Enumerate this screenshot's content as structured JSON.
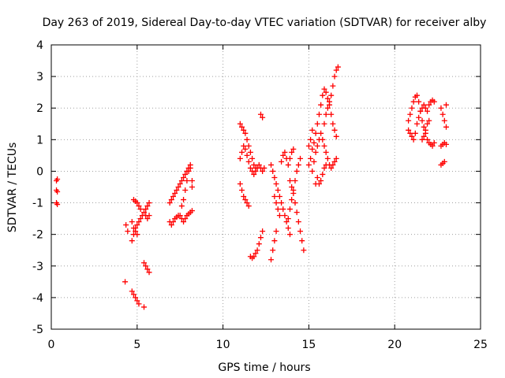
{
  "chart_data": {
    "type": "scatter",
    "title": "Day 263 of 2019, Sidereal Day-to-day VTEC variation (SDTVAR) for receiver alby",
    "xlabel": "GPS time / hours",
    "ylabel": "SDTVAR / TECUs",
    "xlim": [
      0,
      25
    ],
    "ylim": [
      -5,
      4
    ],
    "xticks": [
      "0",
      "5",
      "10",
      "15",
      "20",
      "25"
    ],
    "yticks": [
      "-5",
      "-4",
      "-3",
      "-2",
      "-1",
      "0",
      "1",
      "2",
      "3",
      "4"
    ],
    "grid": true,
    "marker": "plus",
    "color": "#ff0000",
    "series": [
      {
        "points": [
          [
            0.3,
            -0.3
          ],
          [
            0.3,
            -0.6
          ],
          [
            0.3,
            -1.0
          ],
          [
            0.35,
            -0.25
          ],
          [
            0.35,
            -0.65
          ],
          [
            0.35,
            -1.05
          ],
          [
            4.3,
            -3.5
          ],
          [
            4.35,
            -1.7
          ],
          [
            4.45,
            -1.9
          ],
          [
            4.7,
            -3.8
          ],
          [
            4.8,
            -3.9
          ],
          [
            4.9,
            -4.0
          ],
          [
            5.0,
            -4.1
          ],
          [
            5.1,
            -4.2
          ],
          [
            5.4,
            -4.3
          ],
          [
            4.7,
            -2.2
          ],
          [
            4.8,
            -2.0
          ],
          [
            4.9,
            -1.8
          ],
          [
            5.0,
            -1.7
          ],
          [
            5.1,
            -1.6
          ],
          [
            5.2,
            -1.5
          ],
          [
            5.3,
            -1.4
          ],
          [
            5.4,
            -1.3
          ],
          [
            5.5,
            -1.2
          ],
          [
            5.6,
            -1.1
          ],
          [
            5.7,
            -1.0
          ],
          [
            4.7,
            -1.6
          ],
          [
            4.8,
            -1.8
          ],
          [
            4.9,
            -1.9
          ],
          [
            5.0,
            -2.0
          ],
          [
            4.8,
            -0.9
          ],
          [
            4.9,
            -0.95
          ],
          [
            5.0,
            -1.0
          ],
          [
            5.1,
            -1.1
          ],
          [
            5.2,
            -1.2
          ],
          [
            5.5,
            -1.4
          ],
          [
            5.6,
            -1.5
          ],
          [
            5.7,
            -1.4
          ],
          [
            5.4,
            -2.9
          ],
          [
            5.5,
            -3.0
          ],
          [
            5.6,
            -3.1
          ],
          [
            5.7,
            -3.2
          ],
          [
            6.9,
            -1.0
          ],
          [
            7.0,
            -0.9
          ],
          [
            7.1,
            -0.8
          ],
          [
            7.2,
            -0.7
          ],
          [
            7.3,
            -0.6
          ],
          [
            7.4,
            -0.5
          ],
          [
            7.5,
            -0.4
          ],
          [
            7.6,
            -0.3
          ],
          [
            7.7,
            -0.2
          ],
          [
            7.8,
            -0.1
          ],
          [
            7.9,
            0.0
          ],
          [
            8.0,
            0.1
          ],
          [
            8.1,
            0.2
          ],
          [
            6.9,
            -1.6
          ],
          [
            7.0,
            -1.7
          ],
          [
            7.1,
            -1.6
          ],
          [
            7.2,
            -1.5
          ],
          [
            7.3,
            -1.45
          ],
          [
            7.4,
            -1.4
          ],
          [
            7.5,
            -1.4
          ],
          [
            7.6,
            -1.5
          ],
          [
            7.7,
            -1.6
          ],
          [
            7.8,
            -1.5
          ],
          [
            7.9,
            -1.4
          ],
          [
            8.0,
            -1.35
          ],
          [
            8.1,
            -1.3
          ],
          [
            8.2,
            -1.25
          ],
          [
            7.6,
            -1.1
          ],
          [
            7.7,
            -0.9
          ],
          [
            7.8,
            -0.6
          ],
          [
            7.9,
            -0.3
          ],
          [
            8.0,
            0.0
          ],
          [
            8.1,
            0.1
          ],
          [
            8.2,
            -0.3
          ],
          [
            8.2,
            -0.5
          ],
          [
            11.0,
            1.5
          ],
          [
            11.1,
            1.4
          ],
          [
            11.2,
            1.3
          ],
          [
            11.3,
            1.2
          ],
          [
            11.4,
            1.0
          ],
          [
            11.5,
            0.8
          ],
          [
            11.6,
            0.6
          ],
          [
            11.7,
            0.4
          ],
          [
            11.8,
            0.2
          ],
          [
            11.9,
            0.1
          ],
          [
            11.0,
            0.4
          ],
          [
            11.1,
            0.6
          ],
          [
            11.2,
            0.8
          ],
          [
            11.3,
            0.7
          ],
          [
            11.4,
            0.5
          ],
          [
            11.5,
            0.3
          ],
          [
            11.6,
            0.1
          ],
          [
            11.7,
            0.0
          ],
          [
            11.8,
            -0.1
          ],
          [
            11.9,
            0.0
          ],
          [
            12.0,
            0.1
          ],
          [
            12.1,
            0.2
          ],
          [
            12.2,
            0.1
          ],
          [
            12.3,
            0.0
          ],
          [
            12.4,
            0.1
          ],
          [
            11.0,
            -0.4
          ],
          [
            11.1,
            -0.6
          ],
          [
            11.2,
            -0.8
          ],
          [
            11.3,
            -0.9
          ],
          [
            11.4,
            -1.0
          ],
          [
            11.5,
            -1.1
          ],
          [
            12.2,
            1.8
          ],
          [
            12.3,
            1.7
          ],
          [
            11.6,
            -2.7
          ],
          [
            11.7,
            -2.75
          ],
          [
            11.8,
            -2.7
          ],
          [
            11.9,
            -2.6
          ],
          [
            12.0,
            -2.5
          ],
          [
            12.1,
            -2.3
          ],
          [
            12.2,
            -2.1
          ],
          [
            12.3,
            -1.9
          ],
          [
            12.8,
            -2.8
          ],
          [
            12.9,
            -2.5
          ],
          [
            13.0,
            -2.2
          ],
          [
            13.1,
            -1.9
          ],
          [
            12.8,
            0.2
          ],
          [
            12.9,
            0.0
          ],
          [
            13.0,
            -0.2
          ],
          [
            13.1,
            -0.4
          ],
          [
            13.2,
            -0.6
          ],
          [
            13.3,
            -0.8
          ],
          [
            13.4,
            -1.0
          ],
          [
            13.5,
            -1.2
          ],
          [
            13.6,
            -1.4
          ],
          [
            13.7,
            -1.6
          ],
          [
            13.8,
            -1.8
          ],
          [
            13.9,
            -2.0
          ],
          [
            13.0,
            -0.8
          ],
          [
            13.1,
            -1.0
          ],
          [
            13.2,
            -1.2
          ],
          [
            13.3,
            -1.4
          ],
          [
            13.4,
            0.3
          ],
          [
            13.5,
            0.5
          ],
          [
            13.6,
            0.6
          ],
          [
            13.7,
            0.4
          ],
          [
            13.8,
            0.2
          ],
          [
            13.9,
            0.4
          ],
          [
            14.0,
            0.6
          ],
          [
            14.1,
            0.7
          ],
          [
            13.9,
            -0.3
          ],
          [
            14.0,
            -0.5
          ],
          [
            14.1,
            -0.7
          ],
          [
            14.2,
            -1.0
          ],
          [
            14.3,
            -1.3
          ],
          [
            14.4,
            -1.6
          ],
          [
            14.5,
            -1.9
          ],
          [
            14.6,
            -2.2
          ],
          [
            14.7,
            -2.5
          ],
          [
            13.8,
            -1.5
          ],
          [
            13.9,
            -1.2
          ],
          [
            14.0,
            -0.9
          ],
          [
            14.1,
            -0.6
          ],
          [
            14.2,
            -0.3
          ],
          [
            14.3,
            0.0
          ],
          [
            14.4,
            0.2
          ],
          [
            14.5,
            0.4
          ],
          [
            15.0,
            0.2
          ],
          [
            15.1,
            0.4
          ],
          [
            15.2,
            0.7
          ],
          [
            15.3,
            0.9
          ],
          [
            15.4,
            1.2
          ],
          [
            15.5,
            1.5
          ],
          [
            15.6,
            1.8
          ],
          [
            15.7,
            2.1
          ],
          [
            15.8,
            2.4
          ],
          [
            15.9,
            2.6
          ],
          [
            16.0,
            2.5
          ],
          [
            16.1,
            2.3
          ],
          [
            16.2,
            2.1
          ],
          [
            16.3,
            1.8
          ],
          [
            16.4,
            1.5
          ],
          [
            16.5,
            1.3
          ],
          [
            16.6,
            1.1
          ],
          [
            15.2,
            0.0
          ],
          [
            15.3,
            0.3
          ],
          [
            15.4,
            0.6
          ],
          [
            15.5,
            0.8
          ],
          [
            15.6,
            1.0
          ],
          [
            15.7,
            1.2
          ],
          [
            15.8,
            1.0
          ],
          [
            15.9,
            0.8
          ],
          [
            16.0,
            0.6
          ],
          [
            16.1,
            0.4
          ],
          [
            16.2,
            0.2
          ],
          [
            16.3,
            0.1
          ],
          [
            16.4,
            0.2
          ],
          [
            16.5,
            0.3
          ],
          [
            16.6,
            0.4
          ],
          [
            15.4,
            -0.4
          ],
          [
            15.5,
            -0.2
          ],
          [
            15.6,
            -0.4
          ],
          [
            15.7,
            -0.3
          ],
          [
            15.8,
            -0.1
          ],
          [
            15.9,
            0.1
          ],
          [
            16.0,
            0.2
          ],
          [
            15.9,
            1.5
          ],
          [
            16.0,
            1.8
          ],
          [
            16.1,
            2.0
          ],
          [
            16.2,
            2.2
          ],
          [
            16.3,
            2.4
          ],
          [
            16.4,
            2.7
          ],
          [
            16.5,
            3.0
          ],
          [
            16.6,
            3.2
          ],
          [
            16.7,
            3.3
          ],
          [
            15.0,
            0.8
          ],
          [
            15.1,
            1.0
          ],
          [
            15.2,
            1.3
          ],
          [
            20.8,
            1.6
          ],
          [
            20.9,
            1.8
          ],
          [
            21.0,
            2.0
          ],
          [
            21.1,
            2.2
          ],
          [
            21.2,
            2.35
          ],
          [
            21.3,
            2.4
          ],
          [
            21.4,
            2.2
          ],
          [
            21.5,
            1.9
          ],
          [
            21.6,
            1.6
          ],
          [
            21.7,
            1.4
          ],
          [
            21.8,
            1.2
          ],
          [
            21.9,
            1.0
          ],
          [
            22.0,
            0.9
          ],
          [
            22.1,
            0.85
          ],
          [
            22.2,
            0.8
          ],
          [
            22.3,
            0.9
          ],
          [
            20.8,
            1.3
          ],
          [
            20.9,
            1.2
          ],
          [
            21.0,
            1.1
          ],
          [
            21.1,
            1.0
          ],
          [
            21.2,
            1.2
          ],
          [
            21.3,
            1.5
          ],
          [
            21.4,
            1.7
          ],
          [
            21.5,
            1.9
          ],
          [
            21.6,
            2.0
          ],
          [
            21.7,
            2.1
          ],
          [
            21.8,
            2.0
          ],
          [
            21.9,
            1.9
          ],
          [
            22.0,
            2.1
          ],
          [
            22.1,
            2.2
          ],
          [
            22.2,
            2.25
          ],
          [
            22.3,
            2.2
          ],
          [
            21.6,
            1.0
          ],
          [
            21.7,
            1.1
          ],
          [
            21.8,
            1.3
          ],
          [
            21.9,
            1.5
          ],
          [
            22.0,
            1.6
          ],
          [
            22.7,
            2.0
          ],
          [
            22.8,
            1.8
          ],
          [
            22.9,
            1.6
          ],
          [
            23.0,
            1.4
          ],
          [
            23.0,
            2.1
          ],
          [
            22.7,
            0.8
          ],
          [
            22.8,
            0.85
          ],
          [
            22.9,
            0.9
          ],
          [
            23.0,
            0.85
          ],
          [
            22.7,
            0.2
          ],
          [
            22.8,
            0.25
          ],
          [
            22.9,
            0.3
          ]
        ]
      }
    ]
  }
}
